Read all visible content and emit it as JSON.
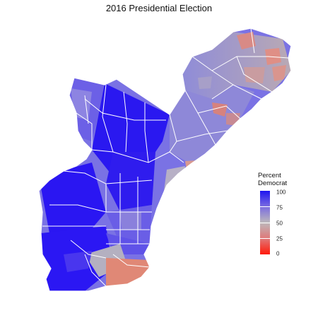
{
  "title": "2016 Presidential Election",
  "legend": {
    "title_line1": "Percent",
    "title_line2": "Democrat",
    "ticks": [
      "100",
      "75",
      "50",
      "25",
      "0"
    ],
    "colors": {
      "high": "#1e14f0",
      "mid": "#bdb8bb",
      "low": "#ff1a0a"
    }
  }
}
